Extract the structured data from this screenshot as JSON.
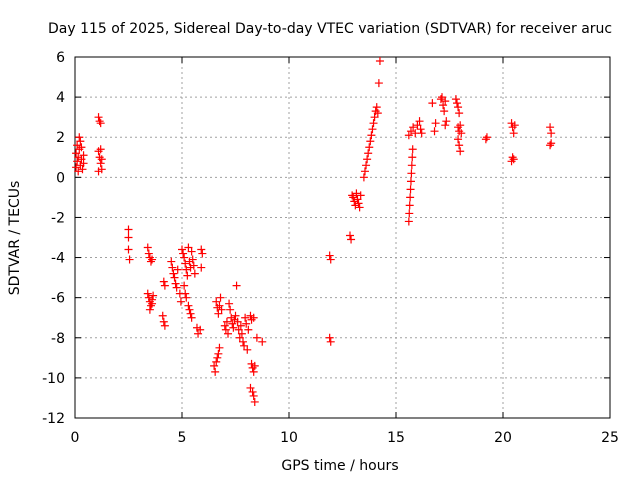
{
  "chart_data": {
    "type": "scatter",
    "title": "Day 115 of 2025, Sidereal Day-to-day VTEC variation (SDTVAR) for receiver aruc",
    "xlabel": "GPS time / hours",
    "ylabel": "SDTVAR / TECUs",
    "xlim": [
      0,
      25
    ],
    "ylim": [
      -12,
      6
    ],
    "xticks": [
      0,
      5,
      10,
      15,
      20,
      25
    ],
    "yticks": [
      -12,
      -10,
      -8,
      -6,
      -4,
      -2,
      0,
      2,
      4,
      6
    ],
    "grid": true,
    "marker": "+",
    "color": "#ff0000",
    "series": [
      {
        "name": "SDTVAR",
        "points": [
          [
            0.05,
            0.5
          ],
          [
            0.05,
            1.2
          ],
          [
            0.1,
            0.8
          ],
          [
            0.1,
            1.6
          ],
          [
            0.15,
            0.3
          ],
          [
            0.15,
            1.0
          ],
          [
            0.2,
            2.0
          ],
          [
            0.2,
            1.4
          ],
          [
            0.25,
            0.6
          ],
          [
            0.25,
            1.8
          ],
          [
            0.3,
            0.9
          ],
          [
            0.3,
            1.5
          ],
          [
            0.35,
            0.4
          ],
          [
            0.4,
            1.1
          ],
          [
            0.4,
            0.7
          ],
          [
            1.1,
            3.0
          ],
          [
            1.15,
            2.8
          ],
          [
            1.2,
            2.7
          ],
          [
            1.1,
            1.3
          ],
          [
            1.15,
            1.0
          ],
          [
            1.2,
            0.7
          ],
          [
            1.25,
            0.4
          ],
          [
            1.1,
            0.3
          ],
          [
            1.2,
            1.4
          ],
          [
            1.25,
            0.9
          ],
          [
            2.5,
            -2.6
          ],
          [
            2.5,
            -3.0
          ],
          [
            2.5,
            -3.6
          ],
          [
            2.55,
            -4.1
          ],
          [
            3.4,
            -3.5
          ],
          [
            3.45,
            -3.8
          ],
          [
            3.5,
            -4.0
          ],
          [
            3.55,
            -4.2
          ],
          [
            3.6,
            -4.1
          ],
          [
            3.4,
            -5.8
          ],
          [
            3.45,
            -6.0
          ],
          [
            3.5,
            -6.2
          ],
          [
            3.55,
            -6.4
          ],
          [
            3.6,
            -6.1
          ],
          [
            3.65,
            -5.9
          ],
          [
            3.5,
            -6.6
          ],
          [
            3.6,
            -6.3
          ],
          [
            4.15,
            -5.2
          ],
          [
            4.2,
            -5.4
          ],
          [
            4.1,
            -6.9
          ],
          [
            4.15,
            -7.2
          ],
          [
            4.2,
            -7.4
          ],
          [
            4.5,
            -4.2
          ],
          [
            4.55,
            -4.5
          ],
          [
            4.6,
            -4.8
          ],
          [
            4.65,
            -5.0
          ],
          [
            4.7,
            -5.3
          ],
          [
            4.75,
            -5.5
          ],
          [
            4.8,
            -4.6
          ],
          [
            4.9,
            -5.8
          ],
          [
            4.95,
            -6.2
          ],
          [
            5.0,
            -3.6
          ],
          [
            5.05,
            -3.8
          ],
          [
            5.1,
            -4.0
          ],
          [
            5.15,
            -4.3
          ],
          [
            5.2,
            -4.6
          ],
          [
            5.25,
            -4.9
          ],
          [
            5.3,
            -3.5
          ],
          [
            5.35,
            -4.2
          ],
          [
            5.4,
            -4.5
          ],
          [
            5.45,
            -3.7
          ],
          [
            5.5,
            -4.1
          ],
          [
            5.55,
            -4.4
          ],
          [
            5.1,
            -5.4
          ],
          [
            5.15,
            -5.8
          ],
          [
            5.2,
            -6.0
          ],
          [
            5.3,
            -6.4
          ],
          [
            5.35,
            -6.6
          ],
          [
            5.4,
            -6.8
          ],
          [
            5.45,
            -7.0
          ],
          [
            5.6,
            -4.8
          ],
          [
            5.7,
            -7.5
          ],
          [
            5.75,
            -7.8
          ],
          [
            5.85,
            -7.6
          ],
          [
            5.9,
            -3.6
          ],
          [
            5.95,
            -3.8
          ],
          [
            5.9,
            -4.5
          ],
          [
            6.5,
            -9.4
          ],
          [
            6.55,
            -9.7
          ],
          [
            6.6,
            -9.2
          ],
          [
            6.65,
            -9.0
          ],
          [
            6.7,
            -8.8
          ],
          [
            6.75,
            -8.5
          ],
          [
            6.6,
            -6.2
          ],
          [
            6.65,
            -6.5
          ],
          [
            6.7,
            -6.8
          ],
          [
            6.75,
            -6.4
          ],
          [
            6.8,
            -6.0
          ],
          [
            6.85,
            -6.6
          ],
          [
            7.0,
            -7.4
          ],
          [
            7.05,
            -7.6
          ],
          [
            7.1,
            -7.2
          ],
          [
            7.15,
            -7.8
          ],
          [
            7.2,
            -6.3
          ],
          [
            7.25,
            -6.6
          ],
          [
            7.3,
            -7.0
          ],
          [
            7.35,
            -7.3
          ],
          [
            7.4,
            -7.5
          ],
          [
            7.45,
            -7.1
          ],
          [
            7.5,
            -6.9
          ],
          [
            7.55,
            -5.4
          ],
          [
            7.6,
            -7.2
          ],
          [
            7.65,
            -7.6
          ],
          [
            7.7,
            -8.0
          ],
          [
            7.75,
            -7.4
          ],
          [
            7.8,
            -7.8
          ],
          [
            7.85,
            -8.2
          ],
          [
            7.9,
            -8.4
          ],
          [
            7.95,
            -7.0
          ],
          [
            8.0,
            -7.3
          ],
          [
            8.05,
            -8.6
          ],
          [
            8.1,
            -7.6
          ],
          [
            8.25,
            -9.3
          ],
          [
            8.3,
            -9.5
          ],
          [
            8.35,
            -9.7
          ],
          [
            8.4,
            -9.4
          ],
          [
            8.2,
            -6.9
          ],
          [
            8.25,
            -7.1
          ],
          [
            8.35,
            -7.0
          ],
          [
            8.2,
            -10.5
          ],
          [
            8.3,
            -10.7
          ],
          [
            8.35,
            -10.9
          ],
          [
            8.4,
            -11.2
          ],
          [
            8.5,
            -8.0
          ],
          [
            8.75,
            -8.2
          ],
          [
            11.9,
            -3.9
          ],
          [
            11.95,
            -4.1
          ],
          [
            11.9,
            -8.0
          ],
          [
            11.95,
            -8.2
          ],
          [
            12.85,
            -2.9
          ],
          [
            12.9,
            -3.1
          ],
          [
            12.95,
            -0.9
          ],
          [
            13.0,
            -1.0
          ],
          [
            13.05,
            -1.2
          ],
          [
            13.1,
            -1.4
          ],
          [
            13.15,
            -0.8
          ],
          [
            13.2,
            -1.1
          ],
          [
            13.25,
            -1.3
          ],
          [
            13.3,
            -1.5
          ],
          [
            13.35,
            -0.9
          ],
          [
            13.5,
            0.0
          ],
          [
            13.55,
            0.3
          ],
          [
            13.6,
            0.6
          ],
          [
            13.65,
            0.9
          ],
          [
            13.7,
            1.2
          ],
          [
            13.75,
            1.5
          ],
          [
            13.8,
            1.8
          ],
          [
            13.85,
            2.1
          ],
          [
            13.9,
            2.4
          ],
          [
            13.95,
            2.7
          ],
          [
            14.0,
            3.0
          ],
          [
            14.05,
            3.3
          ],
          [
            14.1,
            3.5
          ],
          [
            14.15,
            3.2
          ],
          [
            14.2,
            4.7
          ],
          [
            14.25,
            5.8
          ],
          [
            15.6,
            -2.2
          ],
          [
            15.62,
            -1.8
          ],
          [
            15.64,
            -1.4
          ],
          [
            15.66,
            -1.0
          ],
          [
            15.68,
            -0.6
          ],
          [
            15.7,
            -0.2
          ],
          [
            15.72,
            0.2
          ],
          [
            15.74,
            0.6
          ],
          [
            15.76,
            1.0
          ],
          [
            15.78,
            1.4
          ],
          [
            15.6,
            2.1
          ],
          [
            15.7,
            2.3
          ],
          [
            15.8,
            2.5
          ],
          [
            15.9,
            2.2
          ],
          [
            16.0,
            2.6
          ],
          [
            16.1,
            2.8
          ],
          [
            16.15,
            2.4
          ],
          [
            16.2,
            2.2
          ],
          [
            16.7,
            3.7
          ],
          [
            16.8,
            2.3
          ],
          [
            16.85,
            2.7
          ],
          [
            17.1,
            3.9
          ],
          [
            17.15,
            4.0
          ],
          [
            17.2,
            3.6
          ],
          [
            17.25,
            3.3
          ],
          [
            17.3,
            3.8
          ],
          [
            17.35,
            2.8
          ],
          [
            17.3,
            2.6
          ],
          [
            17.8,
            3.9
          ],
          [
            17.85,
            3.7
          ],
          [
            17.9,
            3.5
          ],
          [
            17.95,
            3.2
          ],
          [
            17.9,
            2.5
          ],
          [
            17.95,
            2.3
          ],
          [
            18.0,
            2.6
          ],
          [
            18.05,
            2.2
          ],
          [
            17.9,
            1.9
          ],
          [
            17.95,
            1.6
          ],
          [
            18.0,
            1.3
          ],
          [
            19.2,
            1.9
          ],
          [
            19.25,
            2.0
          ],
          [
            20.4,
            2.7
          ],
          [
            20.45,
            2.5
          ],
          [
            20.5,
            2.2
          ],
          [
            20.55,
            2.6
          ],
          [
            20.4,
            0.8
          ],
          [
            20.45,
            1.0
          ],
          [
            20.5,
            0.9
          ],
          [
            22.2,
            2.5
          ],
          [
            22.25,
            2.2
          ],
          [
            22.2,
            1.6
          ],
          [
            22.25,
            1.7
          ]
        ]
      }
    ]
  }
}
